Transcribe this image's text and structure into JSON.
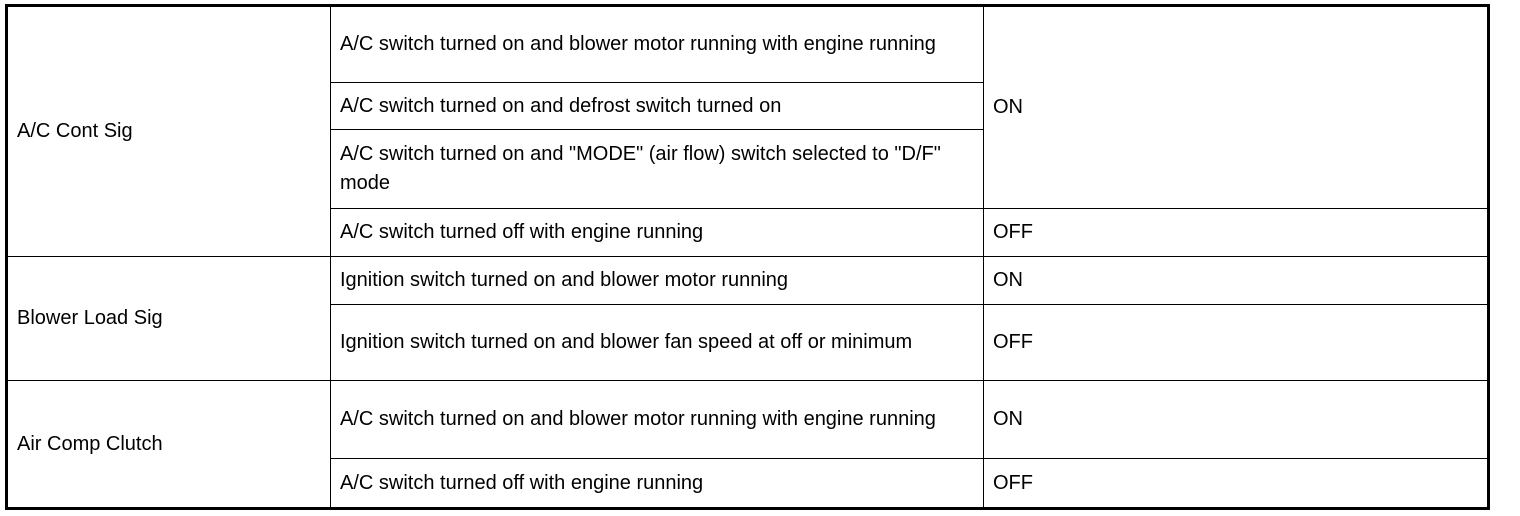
{
  "groups": [
    {
      "signal": "A/C Cont Sig",
      "rows": [
        {
          "condition": "A/C switch turned on and blower motor running with engine running"
        },
        {
          "condition": "A/C switch turned on and defrost switch turned on"
        },
        {
          "condition": "A/C switch turned on and \"MODE\" (air flow) switch selected to \"D/F\" mode"
        },
        {
          "condition": "A/C switch turned off with engine running",
          "value": "OFF"
        }
      ],
      "merged_value": "ON"
    },
    {
      "signal": "Blower Load Sig",
      "rows": [
        {
          "condition": "Ignition switch turned on and blower motor running",
          "value": "ON"
        },
        {
          "condition": "Ignition switch turned on and blower fan speed at off or minimum",
          "value": "OFF"
        }
      ]
    },
    {
      "signal": "Air Comp Clutch",
      "rows": [
        {
          "condition": "A/C switch turned on and blower motor running with engine running",
          "value": "ON"
        },
        {
          "condition": "A/C switch turned off with engine running",
          "value": "OFF"
        }
      ]
    }
  ]
}
